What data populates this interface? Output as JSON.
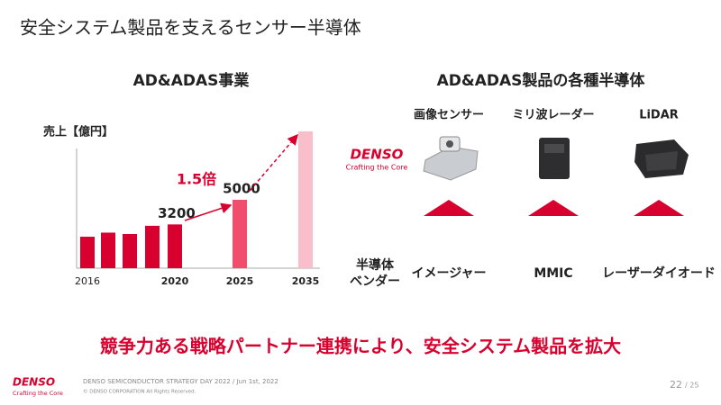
{
  "header": {
    "title": "安全システム製品を支えるセンサー半導体"
  },
  "chart_data": {
    "type": "bar",
    "title": "AD&ADAS事業",
    "y_label": "売上【億円】",
    "categories": [
      "2016",
      null,
      null,
      null,
      "2020",
      "2025",
      "2035"
    ],
    "values": [
      2300,
      2600,
      2500,
      3100,
      3200,
      5000,
      10000
    ],
    "labeled": [
      4,
      5
    ],
    "colors": [
      "#d7002e",
      "#d7002e",
      "#d7002e",
      "#d7002e",
      "#d7002e",
      "#f14d6d",
      "#f8bfcb"
    ],
    "annotation": "1.5倍"
  },
  "products": {
    "title": "AD&ADAS製品の各種半導体",
    "logo": {
      "name": "DENSO",
      "tagline": "Crafting the Core"
    },
    "row_label": [
      "半導体",
      "ベンダー"
    ],
    "columns": [
      {
        "product": "画像センサー",
        "device": "イメージャー"
      },
      {
        "product": "ミリ波レーダー",
        "device": "MMIC"
      },
      {
        "product": "LiDAR",
        "device": "レーザーダイオード"
      }
    ]
  },
  "message": "競争力ある戦略パートナー連携により、安全システム製品を拡大",
  "footer": {
    "logo": "DENSO",
    "tagline": "Crafting the Core",
    "event": "DENSO SEMICONDUCTOR STRATEGY DAY 2022 / Jun 1st, 2022",
    "copyright": "© DENSO CORPORATION All Rights Reserved.",
    "page": "22",
    "total": "/ 25"
  }
}
